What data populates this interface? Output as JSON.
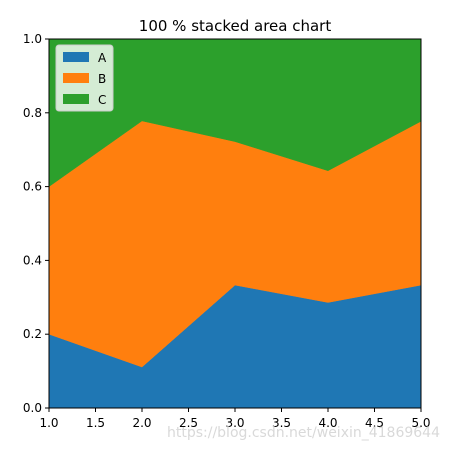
{
  "chart_data": {
    "type": "area",
    "stacked": true,
    "normalized": true,
    "title": "100 % stacked area chart",
    "xlabel": "",
    "ylabel": "",
    "x": [
      1,
      2,
      3,
      4,
      5
    ],
    "xlim": [
      1.0,
      5.0
    ],
    "ylim": [
      0.0,
      1.0
    ],
    "x_ticks": [
      "1.0",
      "1.5",
      "2.0",
      "2.5",
      "3.0",
      "3.5",
      "4.0",
      "4.5",
      "5.0"
    ],
    "y_ticks": [
      "0.0",
      "0.2",
      "0.4",
      "0.6",
      "0.8",
      "1.0"
    ],
    "series": [
      {
        "name": "A",
        "color": "#1f77b4",
        "values": [
          0.2,
          0.111,
          0.333,
          0.286,
          0.333
        ]
      },
      {
        "name": "B",
        "color": "#ff7f0e",
        "values": [
          0.4,
          0.667,
          0.389,
          0.357,
          0.444
        ]
      },
      {
        "name": "C",
        "color": "#2ca02c",
        "values": [
          0.4,
          0.222,
          0.278,
          0.357,
          0.222
        ]
      }
    ],
    "legend_position": "top-left",
    "grid": false
  },
  "watermark": "https://blog.csdn.net/weixin_41869644"
}
